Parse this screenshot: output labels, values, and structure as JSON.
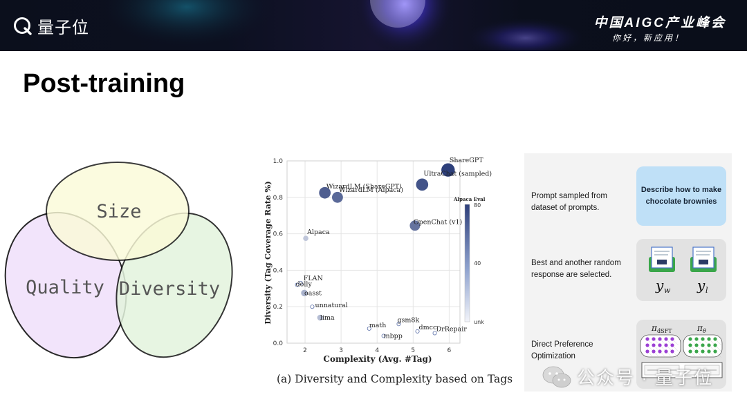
{
  "header": {
    "logo_text": "量子位",
    "summit_title": "中国AIGC产业峰会",
    "summit_subtitle": "你好，新应用！"
  },
  "slide": {
    "title": "Post-training"
  },
  "venn": {
    "labels": [
      "Size",
      "Quality",
      "Diversity"
    ]
  },
  "chart_data": {
    "type": "scatter",
    "xlabel": "Complexity (Avg. #Tag)",
    "ylabel": "Diversity (Tag Coverage Rate %)",
    "xlim": [
      1.5,
      6.3
    ],
    "ylim": [
      0,
      1.0
    ],
    "xticks": [
      "2",
      "3",
      "4",
      "5",
      "6"
    ],
    "yticks": [
      "0.0",
      "0.2",
      "0.4",
      "0.6",
      "0.8",
      "1.0"
    ],
    "colorbar": {
      "label": "Alpaca Eval",
      "ticks": [
        "80",
        "40",
        "unk"
      ]
    },
    "caption": "(a) Diversity and Complexity based on Tags",
    "points": [
      {
        "label": "ShareGPT",
        "x": 5.97,
        "y": 0.95,
        "score": 85
      },
      {
        "label": "UltraChat (sampled)",
        "x": 5.25,
        "y": 0.87,
        "score": 75
      },
      {
        "label": "WizardLM (ShareGPT)",
        "x": 2.55,
        "y": 0.825,
        "score": 70
      },
      {
        "label": "WizardLM (Alpaca)",
        "x": 2.9,
        "y": 0.8,
        "score": 65
      },
      {
        "label": "OpenChat (v1)",
        "x": 5.05,
        "y": 0.645,
        "score": 60
      },
      {
        "label": "Alpaca",
        "x": 2.02,
        "y": 0.575,
        "score": 20
      },
      {
        "label": "FLAN",
        "x": 1.88,
        "y": 0.33,
        "score": 0
      },
      {
        "label": "dolly",
        "x": 1.78,
        "y": 0.32,
        "score": 0
      },
      {
        "label": "oasst",
        "x": 1.98,
        "y": 0.275,
        "score": 30
      },
      {
        "label": "unnatural",
        "x": 2.2,
        "y": 0.2,
        "score": 0
      },
      {
        "label": "lima",
        "x": 2.42,
        "y": 0.14,
        "score": 25
      },
      {
        "label": "math",
        "x": 3.78,
        "y": 0.08,
        "score": 0
      },
      {
        "label": "gsm8k",
        "x": 4.6,
        "y": 0.105,
        "score": 0
      },
      {
        "label": "mbpp",
        "x": 4.18,
        "y": 0.04,
        "score": 0
      },
      {
        "label": "dmcc",
        "x": 5.12,
        "y": 0.065,
        "score": 0
      },
      {
        "label": "DrRepair",
        "x": 5.6,
        "y": 0.055,
        "score": 0
      }
    ]
  },
  "panel": {
    "step1": "Prompt sampled from dataset of prompts.",
    "box1": "Describe how to make chocolate brownies",
    "step2": "Best and another random response are selected.",
    "yw": "y",
    "yw_sub": "w",
    "yl": "y",
    "yl_sub": "l",
    "step3": "Direct Preference Optimization",
    "pi_sft": "π",
    "pi_sft_sub": "dSFT",
    "pi_theta": "π",
    "pi_theta_sub": "θ"
  },
  "watermark": {
    "text": "公众号 · 量子位"
  },
  "colors": {
    "header_bg": "#0b0f1c",
    "bubble_high": "#2d3f7a",
    "bubble_low": "#e6ebf5",
    "venn_size": "#fbfbd8",
    "venn_quality": "#f1e2fb",
    "venn_diversity": "#e3f4dd",
    "dpo_purple": "#9b3fd4",
    "dpo_green": "#3aa64a"
  }
}
